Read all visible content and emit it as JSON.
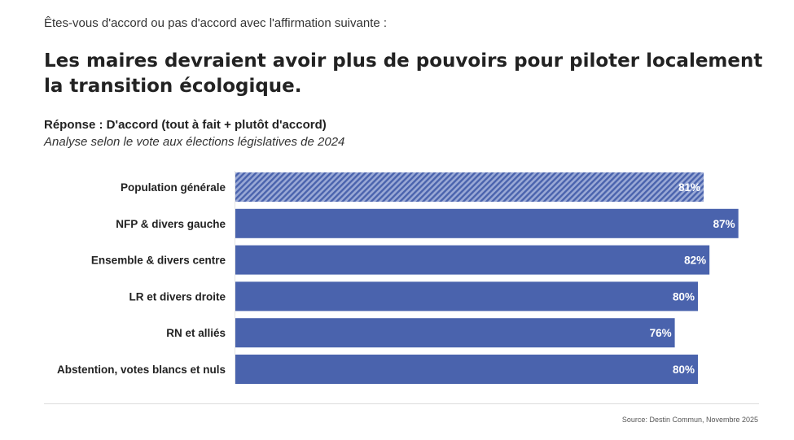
{
  "header": {
    "question": "Êtes-vous d'accord ou pas d'accord avec l'affirmation suivante :",
    "title": "Les maires devraient avoir plus de pouvoirs pour piloter localement la transition écologique.",
    "subtitle": "Réponse : D'accord (tout à fait + plutôt d'accord)",
    "subtitle_italic": "Analyse selon le vote aux élections législatives de 2024"
  },
  "footer": {
    "source": "Source: Destin Commun, Novembre 2025"
  },
  "colors": {
    "bar": "#4a63ad",
    "hatch_light": "#9aa9d6",
    "label_text": "#ffffff",
    "category_text": "#222222"
  },
  "chart_data": {
    "type": "bar",
    "orientation": "horizontal",
    "categories": [
      "Population générale",
      "NFP & divers gauche",
      "Ensemble & divers centre",
      "LR et divers droite",
      "RN et alliés",
      "Abstention, votes blancs et nuls"
    ],
    "values": [
      81,
      87,
      82,
      80,
      76,
      80
    ],
    "value_labels": [
      "81%",
      "87%",
      "82%",
      "80%",
      "76%",
      "80%"
    ],
    "hatched": [
      true,
      false,
      false,
      false,
      false,
      false
    ],
    "unit": "%",
    "xlim": [
      0,
      100
    ],
    "grid": false,
    "legend": "none"
  }
}
